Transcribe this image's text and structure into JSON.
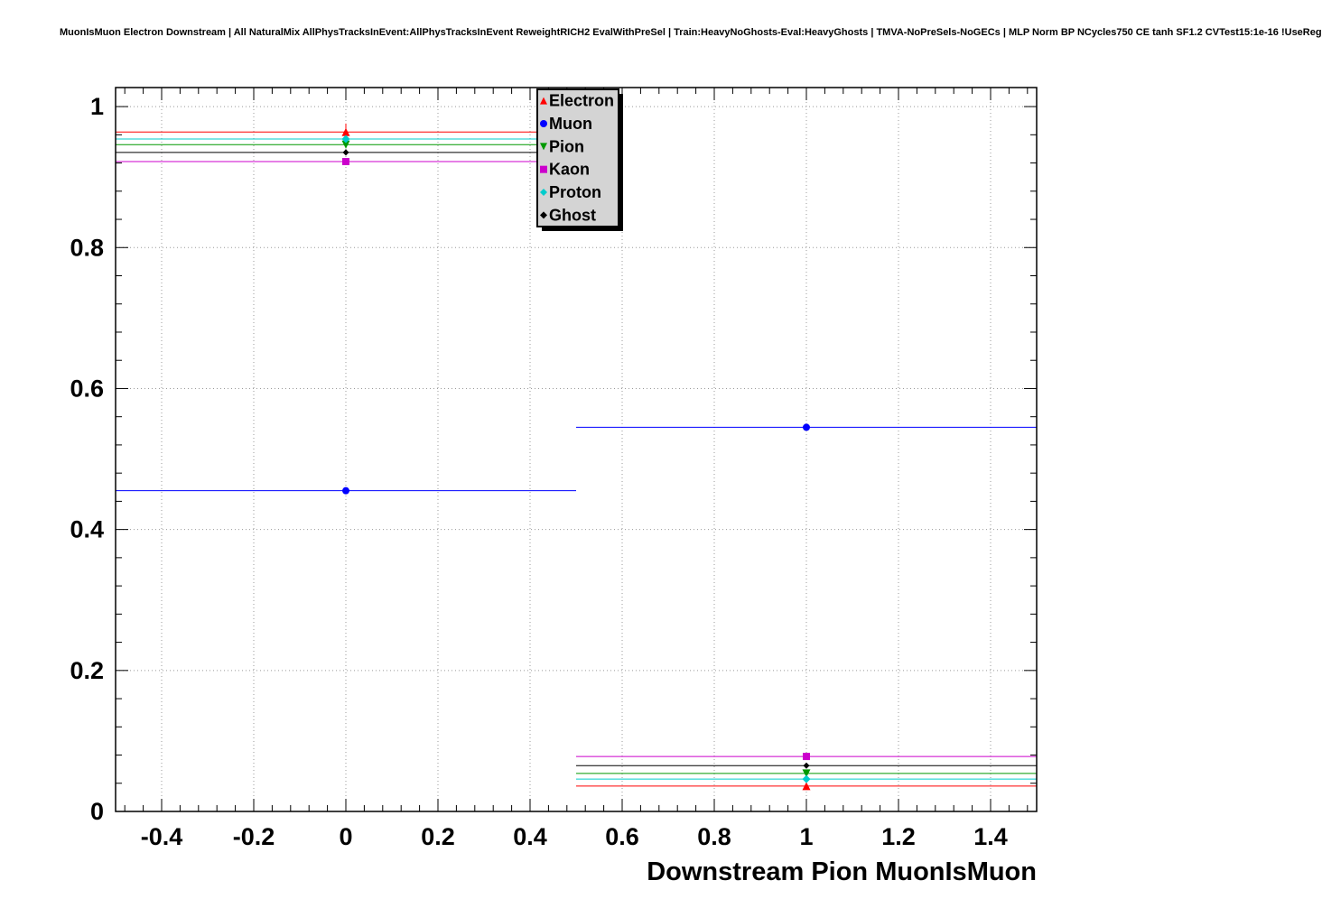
{
  "title": "MuonIsMuon Electron Downstream | All NaturalMix AllPhysTracksInEvent:AllPhysTracksInEvent ReweightRICH2 EvalWithPreSel | Train:HeavyNoGhosts-Eval:HeavyGhosts | TMVA-NoPreSels-NoGECs | MLP Norm BP NCycles750 CE tanh SF1.2 CVTest15:1e-16 !UseReg",
  "chart_data": {
    "type": "scatter",
    "title": "",
    "xlabel": "Downstream Pion MuonIsMuon",
    "ylabel": "",
    "xlim": [
      -0.5,
      1.5
    ],
    "ylim": [
      0,
      1.027
    ],
    "grid": true,
    "grid_color": "#999999",
    "xticks": {
      "values": [
        -0.4,
        -0.2,
        0,
        0.2,
        0.4,
        0.6,
        0.8,
        1,
        1.2,
        1.4
      ],
      "labels": [
        "-0.4",
        "-0.2",
        "0",
        "0.2",
        "0.4",
        "0.6",
        "0.8",
        "1",
        "1.2",
        "1.4"
      ]
    },
    "yticks": {
      "values": [
        0,
        0.2,
        0.4,
        0.6,
        0.8,
        1
      ],
      "labels": [
        "0",
        "0.2",
        "0.4",
        "0.6",
        "0.8",
        "1"
      ]
    },
    "legend": {
      "position": "top-center",
      "background": "#d4d4d4",
      "border": "#000000"
    },
    "series": [
      {
        "name": "Electron",
        "color": "#ff0000",
        "marker": "triangle-up",
        "marker_size": 9,
        "points": [
          {
            "x": 0,
            "y": 0.964,
            "xlow": -0.5,
            "xhigh": 0.5,
            "yerr": 0.012
          },
          {
            "x": 1,
            "y": 0.036,
            "xlow": 0.5,
            "xhigh": 1.5,
            "yerr": 0.004
          }
        ]
      },
      {
        "name": "Muon",
        "color": "#0000ff",
        "marker": "circle",
        "marker_size": 8,
        "points": [
          {
            "x": 0,
            "y": 0.455,
            "xlow": -0.5,
            "xhigh": 0.5,
            "yerr": 0.004
          },
          {
            "x": 1,
            "y": 0.545,
            "xlow": 0.5,
            "xhigh": 1.5,
            "yerr": 0.004
          }
        ]
      },
      {
        "name": "Pion",
        "color": "#009900",
        "marker": "triangle-down",
        "marker_size": 9,
        "points": [
          {
            "x": 0,
            "y": 0.946,
            "xlow": -0.5,
            "xhigh": 0.5,
            "yerr": 0.005
          },
          {
            "x": 1,
            "y": 0.054,
            "xlow": 0.5,
            "xhigh": 1.5,
            "yerr": 0.005
          }
        ]
      },
      {
        "name": "Kaon",
        "color": "#cc00cc",
        "marker": "square",
        "marker_size": 8,
        "points": [
          {
            "x": 0,
            "y": 0.922,
            "xlow": -0.5,
            "xhigh": 0.5,
            "yerr": 0.005
          },
          {
            "x": 1,
            "y": 0.078,
            "xlow": 0.5,
            "xhigh": 1.5,
            "yerr": 0.005
          }
        ]
      },
      {
        "name": "Proton",
        "color": "#00cccc",
        "marker": "diamond",
        "marker_size": 9,
        "points": [
          {
            "x": 0,
            "y": 0.954,
            "xlow": -0.5,
            "xhigh": 0.5,
            "yerr": 0.005
          },
          {
            "x": 1,
            "y": 0.046,
            "xlow": 0.5,
            "xhigh": 1.5,
            "yerr": 0.005
          }
        ]
      },
      {
        "name": "Ghost",
        "color": "#000000",
        "marker": "diamond",
        "marker_size": 7,
        "points": [
          {
            "x": 0,
            "y": 0.935,
            "xlow": -0.5,
            "xhigh": 0.5,
            "yerr": 0.004
          },
          {
            "x": 1,
            "y": 0.065,
            "xlow": 0.5,
            "xhigh": 1.5,
            "yerr": 0.004
          }
        ]
      }
    ]
  }
}
